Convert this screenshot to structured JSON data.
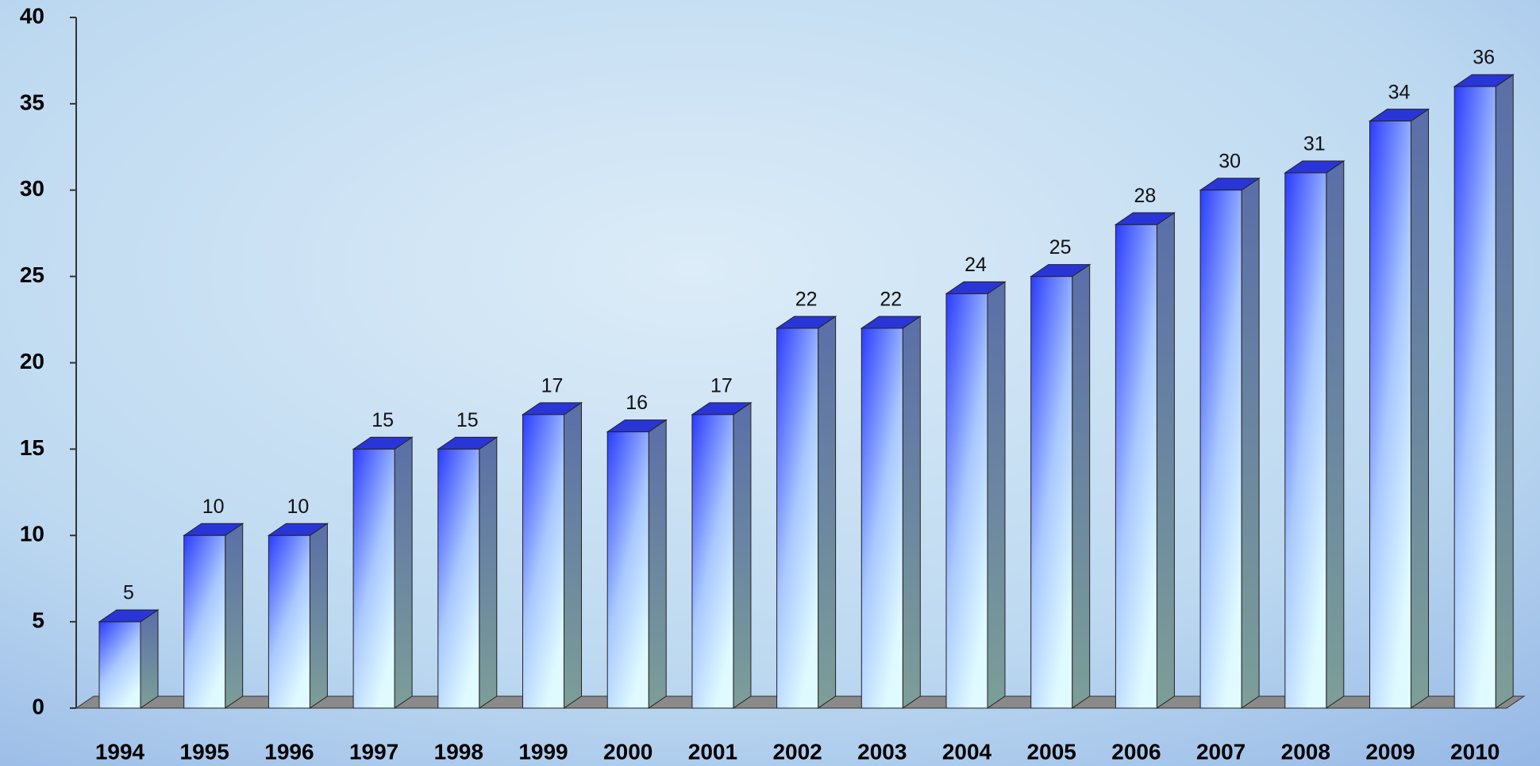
{
  "chart_data": {
    "type": "bar3d",
    "categories": [
      "1994",
      "1995",
      "1996",
      "1997",
      "1998",
      "1999",
      "2000",
      "2001",
      "2002",
      "2003",
      "2004",
      "2005",
      "2006",
      "2007",
      "2008",
      "2009",
      "2010"
    ],
    "values": [
      5,
      10,
      10,
      15,
      15,
      17,
      16,
      17,
      22,
      22,
      24,
      25,
      28,
      30,
      31,
      34,
      36
    ],
    "color": "#2b3cff",
    "ylim": [
      0,
      40
    ],
    "yticks": [
      0,
      5,
      10,
      15,
      20,
      25,
      30,
      35,
      40
    ]
  }
}
